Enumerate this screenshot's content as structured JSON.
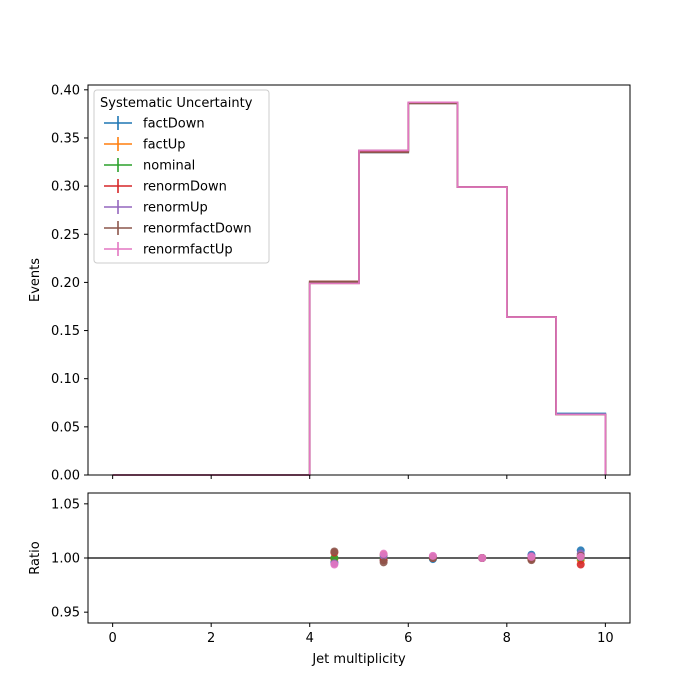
{
  "chart_data": [
    {
      "type": "step",
      "xlabel": "",
      "ylabel": "Events",
      "xlim": [
        -0.5,
        10.5
      ],
      "ylim": [
        0,
        0.405
      ],
      "xticks": [
        0,
        2,
        4,
        6,
        8,
        10
      ],
      "xtick_labels_visible": false,
      "yticks": [
        0.0,
        0.05,
        0.1,
        0.15,
        0.2,
        0.25,
        0.3,
        0.35,
        0.4
      ],
      "ytick_labels": [
        "0.00",
        "0.05",
        "0.10",
        "0.15",
        "0.20",
        "0.25",
        "0.30",
        "0.35",
        "0.40"
      ],
      "bin_edges": [
        0,
        1,
        2,
        3,
        4,
        5,
        6,
        7,
        8,
        9,
        10
      ],
      "legend": {
        "title": "Systematic Uncertainty",
        "placement": "top-left"
      },
      "series": [
        {
          "name": "factDown",
          "color": "#1f77b4",
          "values": [
            0,
            0,
            0,
            0,
            0.2,
            0.335,
            0.386,
            0.299,
            0.164,
            0.064
          ]
        },
        {
          "name": "factUp",
          "color": "#ff7f0e",
          "values": [
            0,
            0,
            0,
            0,
            0.199,
            0.337,
            0.387,
            0.299,
            0.164,
            0.063
          ]
        },
        {
          "name": "nominal",
          "color": "#2ca02c",
          "values": [
            0,
            0,
            0,
            0,
            0.2,
            0.336,
            0.386,
            0.299,
            0.164,
            0.063
          ]
        },
        {
          "name": "renormDown",
          "color": "#d62728",
          "values": [
            0,
            0,
            0,
            0,
            0.201,
            0.336,
            0.386,
            0.299,
            0.164,
            0.063
          ]
        },
        {
          "name": "renormUp",
          "color": "#9467bd",
          "values": [
            0,
            0,
            0,
            0,
            0.199,
            0.337,
            0.387,
            0.299,
            0.164,
            0.063
          ]
        },
        {
          "name": "renormfactDown",
          "color": "#8c564b",
          "values": [
            0,
            0,
            0,
            0,
            0.201,
            0.335,
            0.386,
            0.299,
            0.164,
            0.063
          ]
        },
        {
          "name": "renormfactUp",
          "color": "#e377c2",
          "values": [
            0,
            0,
            0,
            0,
            0.199,
            0.337,
            0.387,
            0.299,
            0.164,
            0.063
          ]
        }
      ]
    },
    {
      "type": "scatter",
      "xlabel": "Jet multiplicity",
      "ylabel": "Ratio",
      "xlim": [
        -0.5,
        10.5
      ],
      "ylim": [
        0.94,
        1.06
      ],
      "xticks": [
        0,
        2,
        4,
        6,
        8,
        10
      ],
      "xtick_labels": [
        "0",
        "2",
        "4",
        "6",
        "8",
        "10"
      ],
      "yticks": [
        0.95,
        1.0,
        1.05
      ],
      "ytick_labels": [
        "0.95",
        "1.00",
        "1.05"
      ],
      "reference_line": 1.0,
      "x": [
        4.5,
        5.5,
        6.5,
        7.5,
        8.5,
        9.5
      ],
      "series": [
        {
          "name": "factDown",
          "color": "#1f77b4",
          "values": [
            0.996,
            0.998,
            0.999,
            1.0,
            1.003,
            1.007
          ]
        },
        {
          "name": "factUp",
          "color": "#ff7f0e",
          "values": [
            0.999,
            1.003,
            1.001,
            1.0,
            0.999,
            0.998
          ]
        },
        {
          "name": "nominal",
          "color": "#2ca02c",
          "values": [
            1.0,
            1.0,
            1.0,
            1.0,
            1.0,
            1.0
          ]
        },
        {
          "name": "renormDown",
          "color": "#d62728",
          "values": [
            1.005,
            0.998,
            1.0,
            1.0,
            0.999,
            0.994
          ]
        },
        {
          "name": "renormUp",
          "color": "#9467bd",
          "values": [
            0.995,
            1.002,
            1.001,
            1.0,
            1.002,
            1.004
          ]
        },
        {
          "name": "renormfactDown",
          "color": "#8c564b",
          "values": [
            1.006,
            0.996,
            1.0,
            1.0,
            0.998,
            1.002
          ]
        },
        {
          "name": "renormfactUp",
          "color": "#e377c2",
          "values": [
            0.994,
            1.004,
            1.002,
            1.0,
            1.001,
            1.001
          ]
        }
      ]
    }
  ]
}
